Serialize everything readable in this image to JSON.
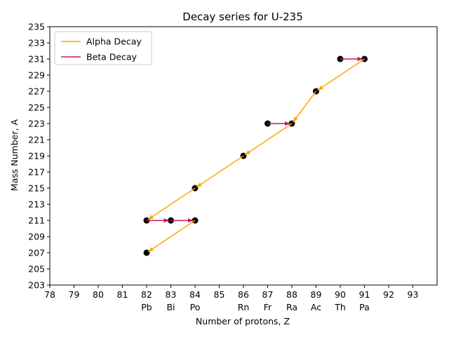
{
  "chart_data": {
    "type": "line",
    "title": "Decay series for U-235",
    "xlabel": "Number of protons, Z",
    "ylabel": "Mass Number, A",
    "xlim": [
      78,
      94
    ],
    "ylim": [
      203,
      235
    ],
    "xticks": [
      78,
      79,
      80,
      81,
      82,
      83,
      84,
      85,
      86,
      87,
      88,
      89,
      90,
      91,
      92,
      93
    ],
    "yticks": [
      203,
      205,
      207,
      209,
      211,
      213,
      215,
      217,
      219,
      221,
      223,
      225,
      227,
      229,
      231,
      233,
      235
    ],
    "element_labels": [
      {
        "z": 82,
        "symbol": "Pb"
      },
      {
        "z": 83,
        "symbol": "Bi"
      },
      {
        "z": 84,
        "symbol": "Po"
      },
      {
        "z": 86,
        "symbol": "Rn"
      },
      {
        "z": 87,
        "symbol": "Fr"
      },
      {
        "z": 88,
        "symbol": "Ra"
      },
      {
        "z": 89,
        "symbol": "Ac"
      },
      {
        "z": 90,
        "symbol": "Th"
      },
      {
        "z": 91,
        "symbol": "Pa"
      }
    ],
    "points": [
      {
        "z": 82,
        "a": 207
      },
      {
        "z": 82,
        "a": 211
      },
      {
        "z": 83,
        "a": 211
      },
      {
        "z": 84,
        "a": 211
      },
      {
        "z": 84,
        "a": 215
      },
      {
        "z": 86,
        "a": 219
      },
      {
        "z": 87,
        "a": 223
      },
      {
        "z": 88,
        "a": 223
      },
      {
        "z": 89,
        "a": 227
      },
      {
        "z": 90,
        "a": 231
      },
      {
        "z": 91,
        "a": 231
      }
    ],
    "series": [
      {
        "name": "Alpha Decay",
        "color": "#ffa500",
        "segments": [
          {
            "from": [
              91,
              231
            ],
            "to": [
              89,
              227
            ]
          },
          {
            "from": [
              89,
              227
            ],
            "to": [
              88,
              223
            ]
          },
          {
            "from": [
              88,
              223
            ],
            "to": [
              86,
              219
            ]
          },
          {
            "from": [
              86,
              219
            ],
            "to": [
              84,
              215
            ]
          },
          {
            "from": [
              84,
              215
            ],
            "to": [
              82,
              211
            ]
          },
          {
            "from": [
              84,
              211
            ],
            "to": [
              82,
              207
            ]
          }
        ]
      },
      {
        "name": "Beta Decay",
        "color": "#c2185b",
        "segments": [
          {
            "from": [
              90,
              231
            ],
            "to": [
              91,
              231
            ]
          },
          {
            "from": [
              87,
              223
            ],
            "to": [
              88,
              223
            ]
          },
          {
            "from": [
              82,
              211
            ],
            "to": [
              83,
              211
            ]
          },
          {
            "from": [
              83,
              211
            ],
            "to": [
              84,
              211
            ]
          }
        ]
      }
    ],
    "legend": {
      "placement": "top-left"
    },
    "grid": false,
    "marker_color": "#000000",
    "axis_color": "#000000"
  }
}
